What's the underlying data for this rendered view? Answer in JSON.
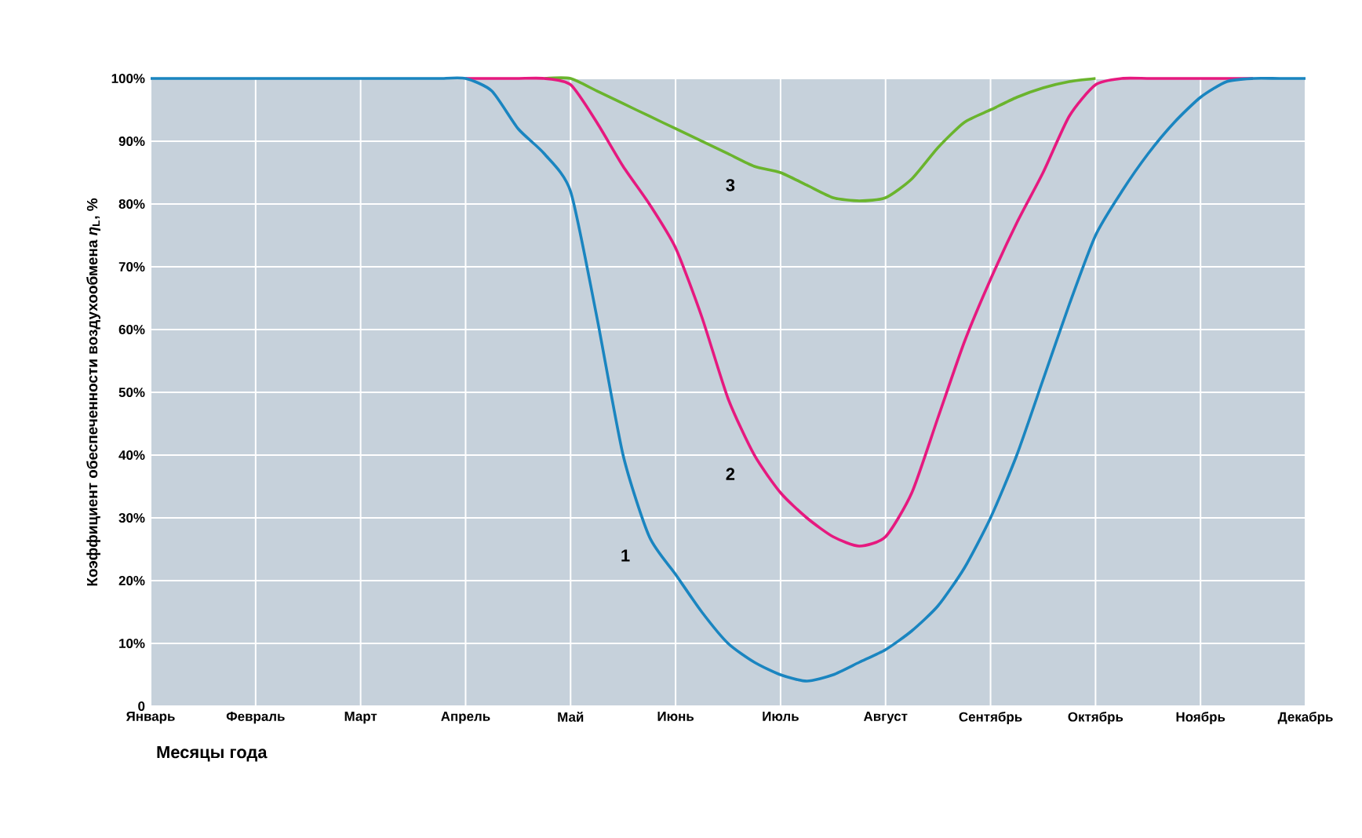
{
  "chart_data": {
    "type": "line",
    "xlabel": "**Месяцы года**",
    "ylabel": "Коэффициент обеспеченности воздухообмена *η*$_{L}$, %",
    "categories": [
      "Январь",
      null,
      null,
      null,
      "Февраль",
      null,
      null,
      null,
      "Март",
      null,
      null,
      null,
      "Апрель",
      null,
      null,
      null,
      "Май",
      null,
      null,
      null,
      "Июнь",
      null,
      null,
      null,
      "Июль",
      null,
      null,
      null,
      "Август",
      null,
      null,
      null,
      "Сентябрь",
      null,
      null,
      null,
      "Октябрь",
      null,
      null,
      null,
      "Ноябрь",
      null,
      null,
      null,
      "Декабрь"
    ],
    "ylim": [
      0,
      100
    ],
    "yticks": [
      0,
      {
        "value": 10,
        "label": "10%"
      },
      {
        "value": 20,
        "label": "20%"
      },
      {
        "value": 30,
        "label": "30%"
      },
      {
        "value": 40,
        "label": "40%"
      },
      {
        "value": 50,
        "label": "50%"
      },
      {
        "value": 60,
        "label": "60%"
      },
      {
        "value": 70,
        "label": "70%"
      },
      {
        "value": 80,
        "label": "80%"
      },
      {
        "value": 90,
        "label": "90%"
      },
      {
        "value": 100,
        "label": "100%"
      }
    ],
    "grid": true,
    "marker": "none",
    "line_style": "solid",
    "series": [
      {
        "name": "3",
        "color": "#6ab42d",
        "values": [
          null,
          null,
          null,
          null,
          null,
          null,
          null,
          null,
          null,
          null,
          null,
          null,
          null,
          null,
          null,
          100,
          100,
          98,
          96,
          94,
          92,
          90,
          88,
          86,
          85,
          83,
          81,
          80.5,
          81,
          84,
          89,
          93,
          95,
          97,
          98.5,
          99.5,
          100,
          null,
          null,
          null,
          null,
          null,
          null,
          null,
          null
        ]
      },
      {
        "name": "2",
        "color": "#e6197f",
        "values": [
          null,
          null,
          null,
          null,
          null,
          null,
          null,
          null,
          null,
          null,
          null,
          null,
          100,
          100,
          100,
          100,
          99,
          93,
          86,
          80,
          73,
          62,
          49,
          40,
          34,
          30,
          27,
          25.5,
          27,
          34,
          46,
          58,
          68,
          77,
          85,
          94,
          99,
          100,
          100,
          100,
          100,
          100,
          100,
          null,
          null
        ]
      },
      {
        "name": "1",
        "color": "#1a85c0",
        "values": [
          100,
          100,
          100,
          100,
          100,
          100,
          100,
          100,
          100,
          100,
          100,
          100,
          100,
          98,
          92,
          88,
          82,
          62,
          40,
          27,
          21,
          15,
          10,
          7,
          5,
          4,
          5,
          7,
          9,
          12,
          16,
          22,
          30,
          40,
          52,
          64,
          75,
          82,
          88,
          93,
          97,
          99.5,
          100,
          100,
          100
        ]
      }
    ]
  }
}
